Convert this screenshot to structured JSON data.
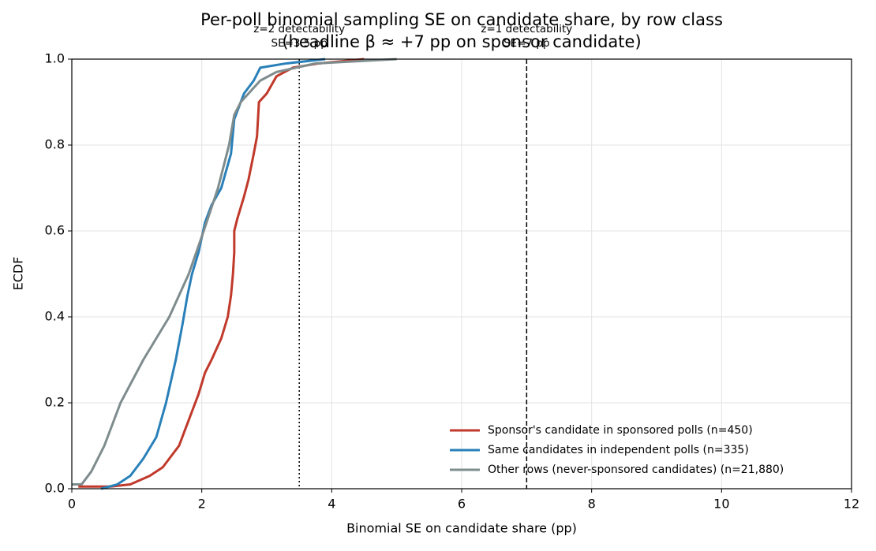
{
  "chart_data": {
    "type": "line",
    "title": "Per-poll binomial sampling SE on candidate share, by row class",
    "subtitle": "(headline β ≈ +7 pp on sponsor candidate)",
    "x_label": "Binomial SE on candidate share (pp)",
    "y_label": "ECDF",
    "xlim": [
      0,
      12
    ],
    "ylim": [
      0,
      1
    ],
    "xticks": [
      0,
      2,
      4,
      6,
      8,
      10,
      12
    ],
    "yticks": [
      {
        "value": 0,
        "label": "0.0"
      },
      {
        "value": 0.2,
        "label": "0.2"
      },
      {
        "value": 0.4,
        "label": "0.4"
      },
      {
        "value": 0.6,
        "label": "0.6"
      },
      {
        "value": 0.8,
        "label": "0.8"
      },
      {
        "value": 1,
        "label": "1.0"
      }
    ],
    "grid": true,
    "legend": "lower right",
    "series": [
      {
        "name": "Sponsor's candidate in sponsored polls (n=450)",
        "color": "#c0392b",
        "x": [
          0.1,
          0.6,
          0.9,
          1.2,
          1.4,
          1.55,
          1.65,
          1.75,
          1.85,
          1.95,
          2.05,
          2.15,
          2.3,
          2.4,
          2.45,
          2.48,
          2.5,
          2.5,
          2.55,
          2.65,
          2.72,
          2.8,
          2.85,
          2.88,
          3.0,
          3.15,
          3.4,
          3.8,
          4.5
        ],
        "values": [
          0.005,
          0.005,
          0.01,
          0.03,
          0.05,
          0.08,
          0.1,
          0.14,
          0.18,
          0.22,
          0.27,
          0.3,
          0.35,
          0.4,
          0.45,
          0.5,
          0.55,
          0.6,
          0.63,
          0.68,
          0.72,
          0.78,
          0.82,
          0.9,
          0.92,
          0.96,
          0.98,
          0.99,
          1.0
        ]
      },
      {
        "name": "Same candidates in independent polls (n=335)",
        "color": "#2980b9",
        "x": [
          0.45,
          0.7,
          0.9,
          1.1,
          1.3,
          1.45,
          1.6,
          1.7,
          1.78,
          1.85,
          1.95,
          2.05,
          2.15,
          2.3,
          2.45,
          2.5,
          2.65,
          2.8,
          2.9,
          3.3,
          3.9
        ],
        "values": [
          0,
          0.01,
          0.03,
          0.07,
          0.12,
          0.2,
          0.3,
          0.38,
          0.45,
          0.5,
          0.55,
          0.62,
          0.66,
          0.7,
          0.78,
          0.86,
          0.92,
          0.95,
          0.98,
          0.99,
          1.0
        ]
      },
      {
        "name": "Other rows (never-sponsored candidates) (n=21,880)",
        "color": "#7f8c8d",
        "x": [
          0,
          0.15,
          0.3,
          0.5,
          0.75,
          1.1,
          1.5,
          1.8,
          2.03,
          2.25,
          2.42,
          2.5,
          2.6,
          2.9,
          3.15,
          3.75,
          5.0
        ],
        "values": [
          0.01,
          0.01,
          0.04,
          0.1,
          0.2,
          0.3,
          0.4,
          0.5,
          0.6,
          0.7,
          0.8,
          0.87,
          0.9,
          0.95,
          0.97,
          0.99,
          1.0
        ]
      }
    ],
    "vlines": [
      {
        "x": 3.5,
        "style": "dotted",
        "label": "z=2 detectability",
        "sublabel": "SE=3.5 pp"
      },
      {
        "x": 7,
        "style": "dashed",
        "label": "z=1 detectability",
        "sublabel": "SE=7 pp"
      }
    ]
  }
}
